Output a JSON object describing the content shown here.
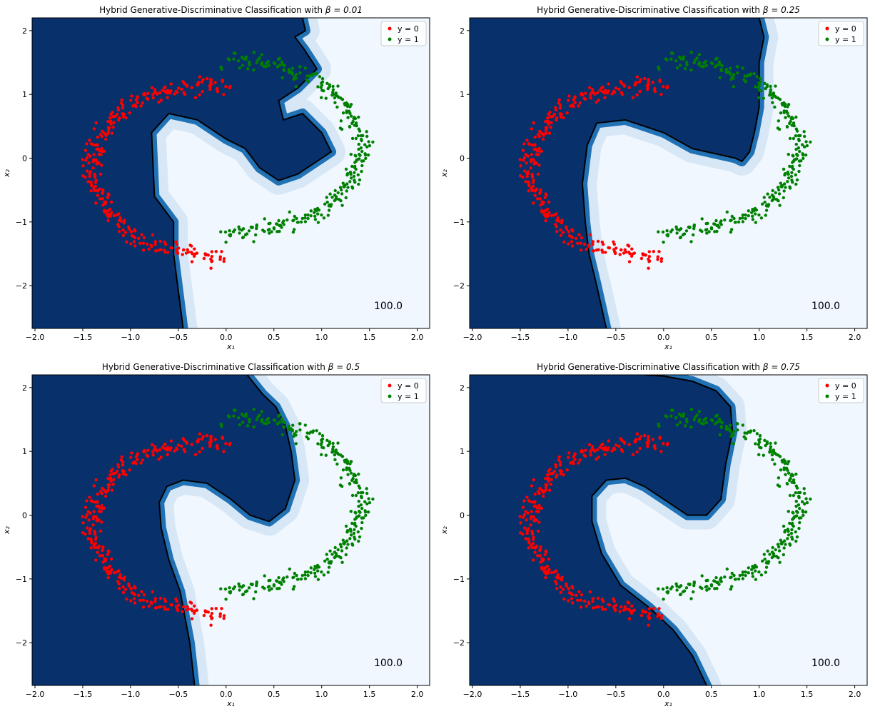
{
  "figure": {
    "background": "#ffffff",
    "colors": {
      "class0": "#ff0000",
      "class1": "#008000",
      "region_dark": "#08306b",
      "region_mid": "#2171b5",
      "region_light": "#c6dbef",
      "region_bg": "#f0f7ff",
      "contour": "#000000"
    }
  },
  "chart_data": [
    {
      "type": "scatter",
      "title_prefix": "Hybrid Generative-Discriminative Classification with ",
      "title_beta": "β = 0.01",
      "xlabel": "x₁",
      "ylabel": "x₂",
      "xlim": [
        -2.03,
        2.13
      ],
      "ylim": [
        -2.67,
        2.2
      ],
      "xticks": [
        "−2.0",
        "−1.5",
        "−1.0",
        "−0.5",
        "0.0",
        "0.5",
        "1.0",
        "1.5",
        "2.0"
      ],
      "yticks": [
        "−2",
        "−1",
        "0",
        "1",
        "2"
      ],
      "legend": {
        "placement": "top-right",
        "entries": [
          "y = 0",
          "y = 1"
        ]
      },
      "annotation": "100.0",
      "boundary_x": [
        -0.45,
        -0.55,
        -0.55,
        -0.75,
        -0.78,
        -0.6,
        -0.3,
        0.0,
        0.2,
        0.35,
        0.55,
        0.75,
        0.9,
        1.1,
        1.0,
        0.8,
        0.6,
        0.55,
        0.75,
        0.95,
        0.82,
        0.72,
        0.83,
        0.8
      ],
      "boundary_y": [
        -2.67,
        -1.5,
        -1.0,
        -0.6,
        0.4,
        0.7,
        0.6,
        0.3,
        0.15,
        -0.15,
        -0.35,
        -0.25,
        -0.1,
        0.1,
        0.4,
        0.7,
        0.6,
        0.9,
        1.1,
        1.4,
        1.7,
        1.9,
        2.0,
        2.2
      ]
    },
    {
      "type": "scatter",
      "title_prefix": "Hybrid Generative-Discriminative Classification with ",
      "title_beta": "β = 0.25",
      "xlabel": "x₁",
      "ylabel": "x₂",
      "xlim": [
        -2.03,
        2.13
      ],
      "ylim": [
        -2.67,
        2.2
      ],
      "xticks": [
        "−2.0",
        "−1.5",
        "−1.0",
        "−0.5",
        "0.0",
        "0.5",
        "1.0",
        "1.5",
        "2.0"
      ],
      "yticks": [
        "−2",
        "−1",
        "0",
        "1",
        "2"
      ],
      "legend": {
        "placement": "top-right",
        "entries": [
          "y = 0",
          "y = 1"
        ]
      },
      "annotation": "100.0",
      "boundary_x": [
        -0.6,
        -0.7,
        -0.78,
        -0.82,
        -0.85,
        -0.8,
        -0.7,
        -0.4,
        0.0,
        0.3,
        0.6,
        0.75,
        0.82,
        0.9,
        0.95,
        1.0,
        1.0,
        1.0,
        1.05,
        1.0
      ],
      "boundary_y": [
        -2.67,
        -2.0,
        -1.5,
        -1.0,
        -0.4,
        0.2,
        0.55,
        0.6,
        0.4,
        0.15,
        0.05,
        0.0,
        -0.05,
        0.1,
        0.4,
        0.8,
        1.2,
        1.5,
        1.9,
        2.2
      ]
    },
    {
      "type": "scatter",
      "title_prefix": "Hybrid Generative-Discriminative Classification with ",
      "title_beta": "β = 0.5",
      "xlabel": "x₁",
      "ylabel": "x₂",
      "xlim": [
        -2.03,
        2.13
      ],
      "ylim": [
        -2.67,
        2.2
      ],
      "xticks": [
        "−2.0",
        "−1.5",
        "−1.0",
        "−0.5",
        "0.0",
        "0.5",
        "1.0",
        "1.5",
        "2.0"
      ],
      "yticks": [
        "−2",
        "−1",
        "0",
        "1",
        "2"
      ],
      "legend": {
        "placement": "top-right",
        "entries": [
          "y = 0",
          "y = 1"
        ]
      },
      "annotation": "100.0",
      "boundary_x": [
        -0.33,
        -0.38,
        -0.48,
        -0.6,
        -0.68,
        -0.7,
        -0.62,
        -0.45,
        -0.2,
        0.05,
        0.25,
        0.45,
        0.62,
        0.72,
        0.68,
        0.62,
        0.52,
        0.38,
        0.3,
        0.22
      ],
      "boundary_y": [
        -2.67,
        -2.0,
        -1.2,
        -0.7,
        -0.2,
        0.2,
        0.45,
        0.55,
        0.5,
        0.25,
        0.0,
        -0.1,
        0.1,
        0.55,
        1.0,
        1.4,
        1.7,
        1.9,
        2.05,
        2.2
      ]
    },
    {
      "type": "scatter",
      "title_prefix": "Hybrid Generative-Discriminative Classification with ",
      "title_beta": "β = 0.75",
      "xlabel": "x₁",
      "ylabel": "x₂",
      "xlim": [
        -2.03,
        2.13
      ],
      "ylim": [
        -2.67,
        2.2
      ],
      "xticks": [
        "−2.0",
        "−1.5",
        "−1.0",
        "−0.5",
        "0.0",
        "0.5",
        "1.0",
        "1.5",
        "2.0"
      ],
      "yticks": [
        "−2",
        "−1",
        "0",
        "1",
        "2"
      ],
      "legend": {
        "placement": "top-right",
        "entries": [
          "y = 0",
          "y = 1"
        ]
      },
      "annotation": "100.0",
      "boundary_x": [
        0.45,
        0.3,
        0.1,
        -0.15,
        -0.45,
        -0.65,
        -0.75,
        -0.75,
        -0.6,
        -0.4,
        -0.2,
        0.05,
        0.25,
        0.45,
        0.6,
        0.65,
        0.72,
        0.7,
        0.55,
        0.3,
        0.0,
        -0.2
      ],
      "boundary_y": [
        -2.67,
        -2.2,
        -1.8,
        -1.45,
        -1.1,
        -0.6,
        -0.1,
        0.3,
        0.55,
        0.58,
        0.45,
        0.2,
        0.0,
        0.0,
        0.25,
        0.8,
        1.3,
        1.7,
        1.95,
        2.1,
        2.18,
        2.2
      ]
    }
  ]
}
